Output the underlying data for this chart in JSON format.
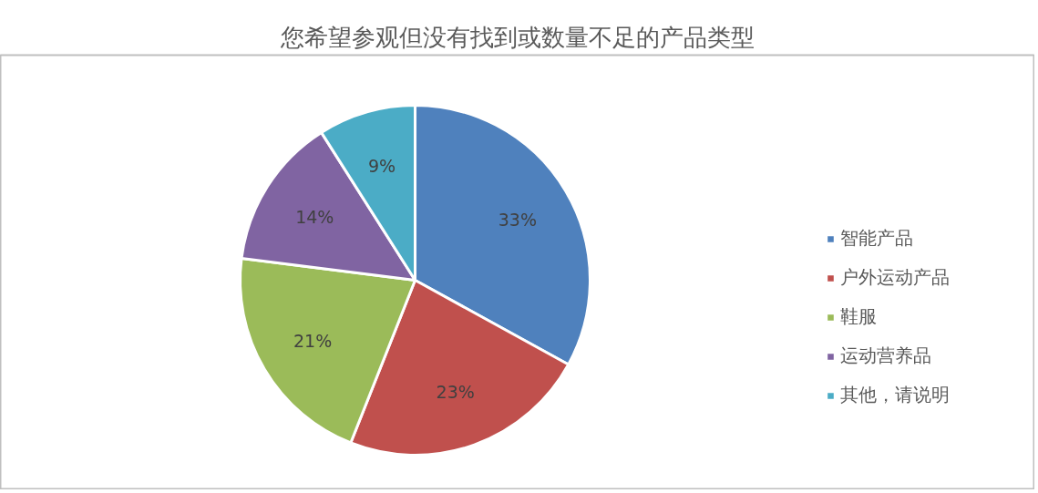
{
  "chart_data": {
    "type": "pie",
    "title": "您希望参观但没有找到或数量不足的产品类型",
    "categories": [
      "智能产品",
      "户外运动产品",
      "鞋服",
      "运动营养品",
      "其他，请说明"
    ],
    "values": [
      33,
      23,
      21,
      14,
      9
    ],
    "colors": [
      "#4f81bd",
      "#c0504d",
      "#9bbb59",
      "#8064a2",
      "#4bacc6"
    ],
    "value_labels": [
      "33%",
      "23%",
      "21%",
      "14%",
      "9%"
    ],
    "legend": "right"
  }
}
